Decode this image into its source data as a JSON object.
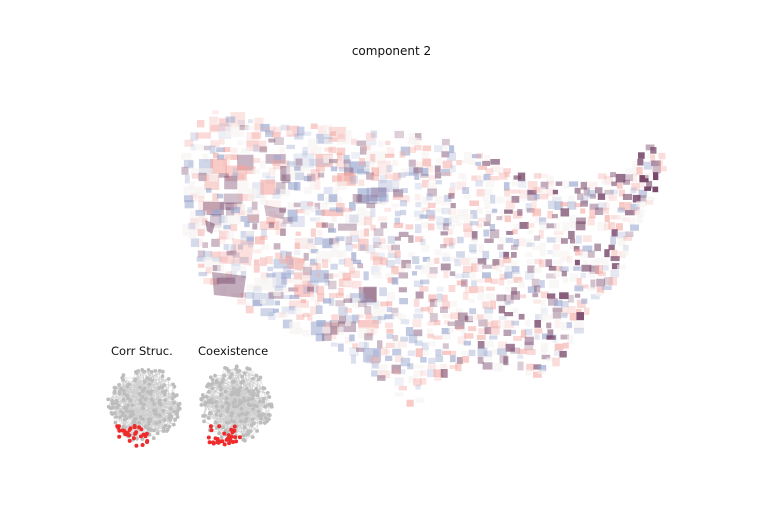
{
  "figure": {
    "title": "component 2",
    "colormap": {
      "negative": "#9aa7cf",
      "neutral": "#f7f3f2",
      "positive": "#f3a6a0",
      "strong": "#7a4a6c"
    }
  },
  "insets": [
    {
      "label": "Corr Struc.",
      "node_color": "#bdbdbd",
      "highlight_color": "#ee2a2a"
    },
    {
      "label": "Coexistence",
      "node_color": "#bdbdbd",
      "highlight_color": "#ee2a2a"
    }
  ]
}
